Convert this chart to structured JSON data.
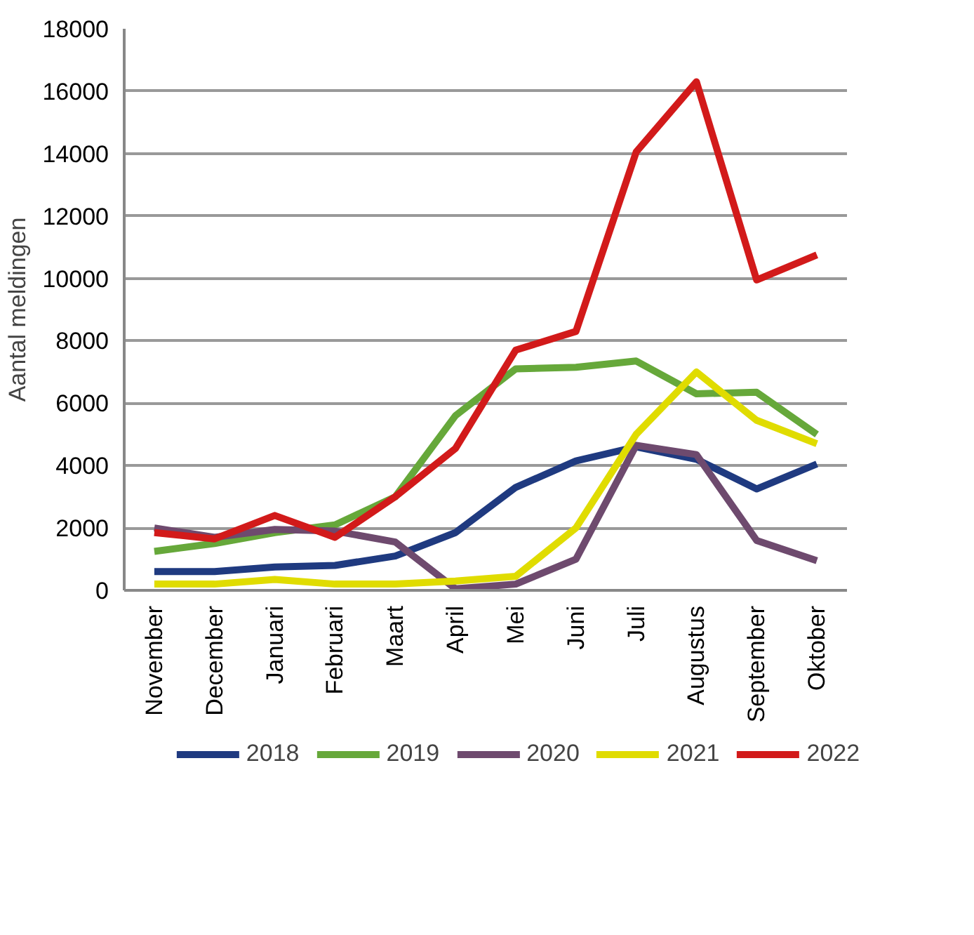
{
  "chart_data": {
    "type": "line",
    "ylabel": "Aantal meldingen",
    "categories": [
      "November",
      "December",
      "Januari",
      "Februari",
      "Maart",
      "April",
      "Mei",
      "Juni",
      "Juli",
      "Augustus",
      "September",
      "Oktober"
    ],
    "series": [
      {
        "name": "2018",
        "color": "#1f3a80",
        "values": [
          600,
          600,
          750,
          800,
          1100,
          1850,
          3300,
          4150,
          4600,
          4200,
          3250,
          4050
        ]
      },
      {
        "name": "2019",
        "color": "#66a83a",
        "values": [
          1250,
          1500,
          1850,
          2100,
          3000,
          5600,
          7100,
          7150,
          7350,
          6300,
          6350,
          5000
        ]
      },
      {
        "name": "2020",
        "color": "#6e4a6e",
        "values": [
          2000,
          1700,
          1950,
          1900,
          1550,
          50,
          200,
          1000,
          4650,
          4350,
          1600,
          950
        ]
      },
      {
        "name": "2021",
        "color": "#e0dc00",
        "values": [
          200,
          200,
          350,
          200,
          200,
          300,
          450,
          2000,
          5000,
          7000,
          5450,
          4700
        ]
      },
      {
        "name": "2022",
        "color": "#d21a1a",
        "values": [
          1850,
          1650,
          2400,
          1700,
          3000,
          4550,
          7700,
          8300,
          14050,
          16300,
          9950,
          10750
        ]
      }
    ],
    "ylim": [
      0,
      18000
    ],
    "yticks": [
      0,
      2000,
      4000,
      6000,
      8000,
      10000,
      12000,
      14000,
      16000,
      18000
    ],
    "grid": "y",
    "legend": "bottom",
    "marker": "none",
    "line_style": "solid"
  }
}
